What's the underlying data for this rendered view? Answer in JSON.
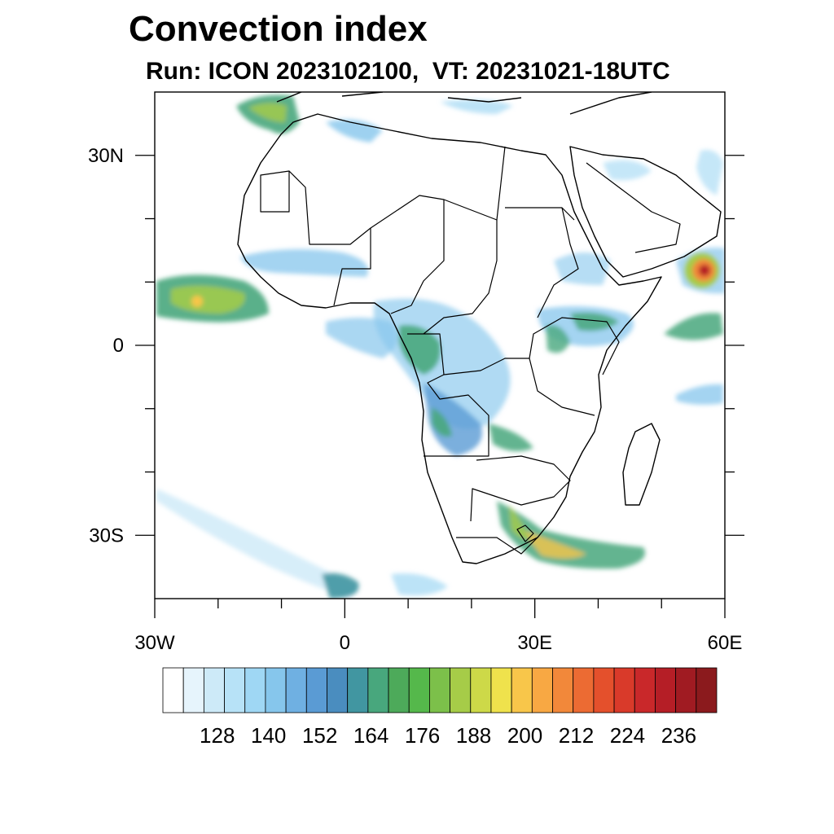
{
  "title": "Convection index",
  "subtitle": "Run: ICON 2023102100,  VT: 20231021-18UTC",
  "map": {
    "projection": "lat-lon",
    "lon_range": [
      -30,
      60
    ],
    "lat_range": [
      -40,
      40
    ],
    "lon_ticks": [
      {
        "value": -30,
        "label": "30W"
      },
      {
        "value": 0,
        "label": "0"
      },
      {
        "value": 30,
        "label": "30E"
      },
      {
        "value": 60,
        "label": "60E"
      }
    ],
    "lat_ticks": [
      {
        "value": 30,
        "label": "30N"
      },
      {
        "value": 0,
        "label": "0"
      },
      {
        "value": -30,
        "label": "30S"
      }
    ]
  },
  "colorbar": {
    "colors": [
      "#ffffff",
      "#e6f4fc",
      "#cdeaf8",
      "#b7e2f7",
      "#9fd7f4",
      "#86c6ec",
      "#6fb0e2",
      "#5a9bd4",
      "#4a8dbf",
      "#4196a1",
      "#48a77d",
      "#4daa5a",
      "#55b84b",
      "#7cc04a",
      "#a6cc48",
      "#cdd948",
      "#efe24c",
      "#f8c64a",
      "#f8a843",
      "#f2883a",
      "#ec6b33",
      "#e4502c",
      "#d93a2a",
      "#c9282a",
      "#b51e26",
      "#a01b22",
      "#8b1a1d"
    ],
    "labels": [
      "128",
      "140",
      "152",
      "164",
      "176",
      "188",
      "200",
      "212",
      "224",
      "236"
    ]
  }
}
